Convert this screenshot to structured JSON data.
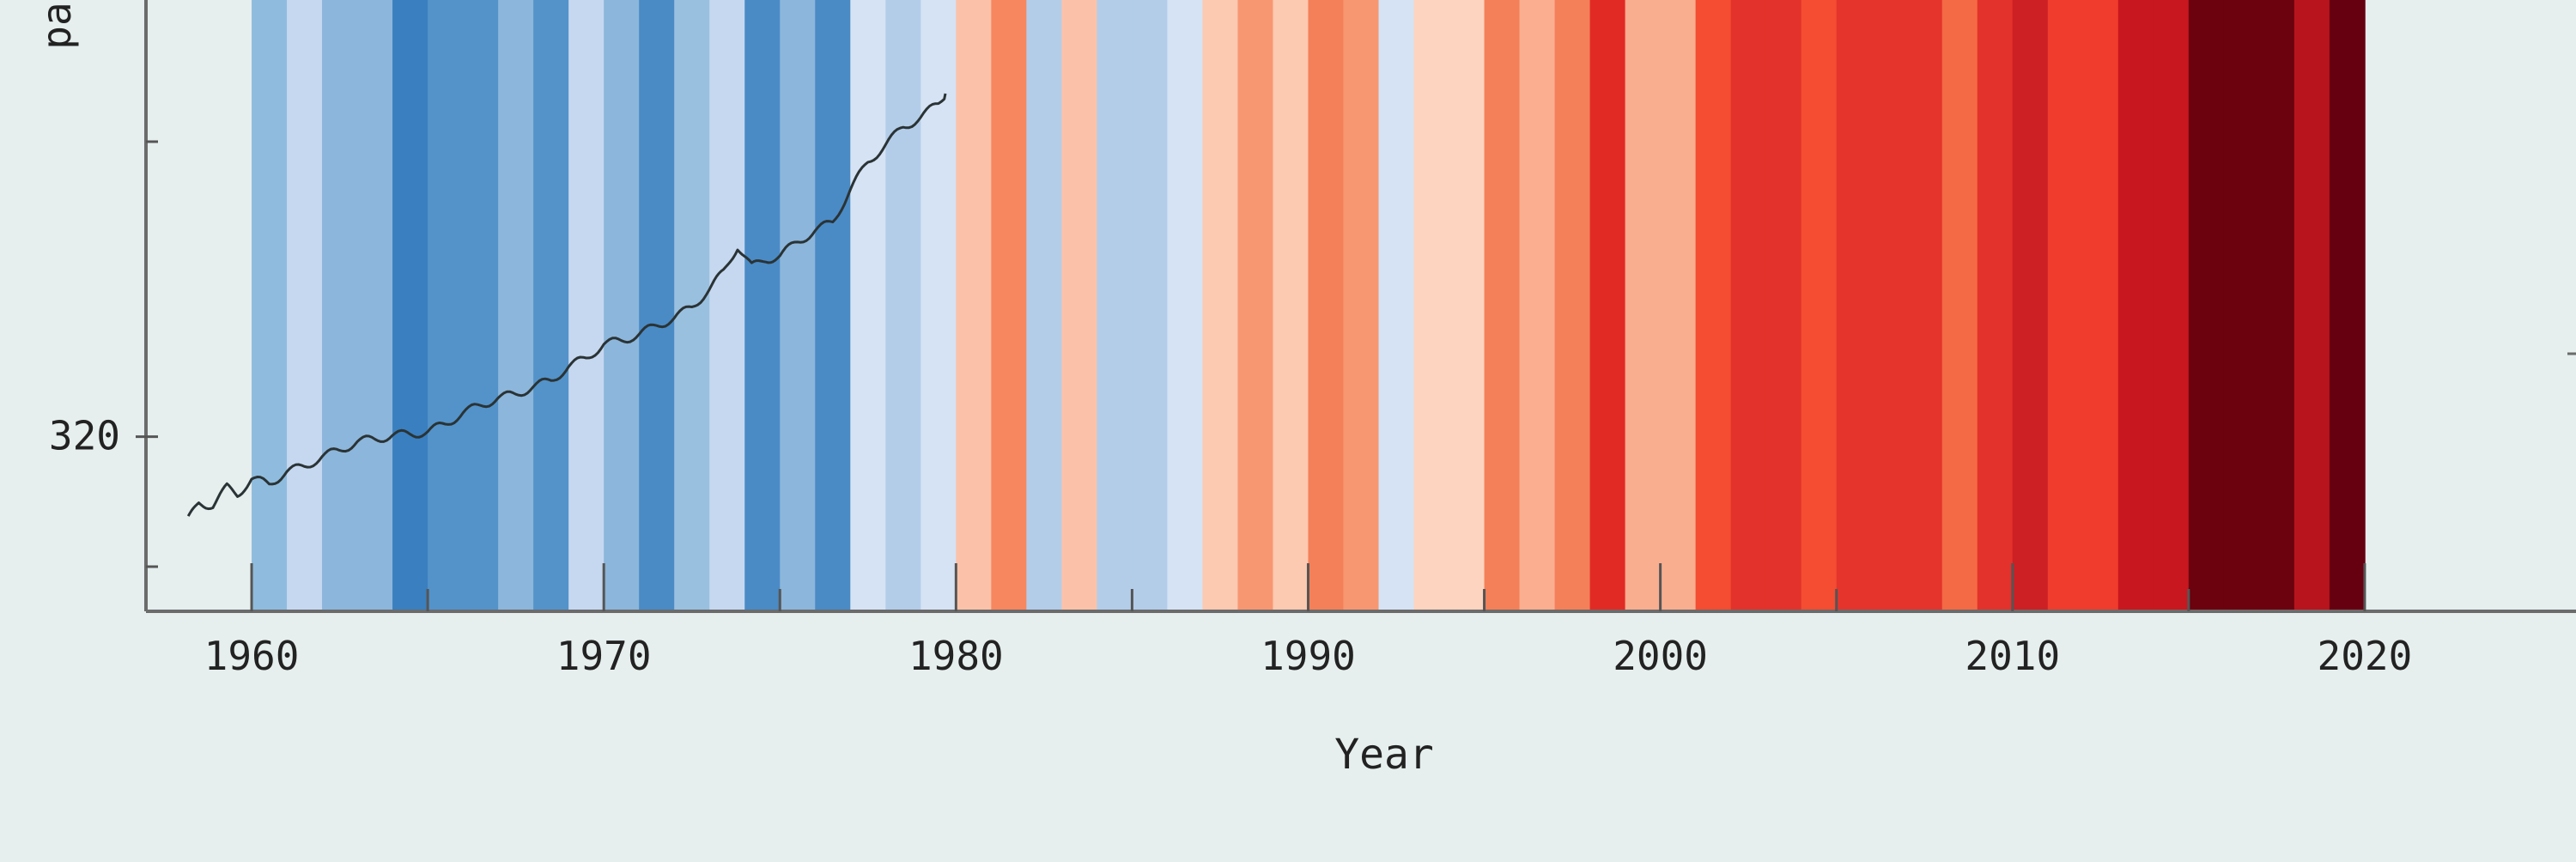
{
  "chart_data": {
    "type": "bar",
    "title": "",
    "xlabel": "Year",
    "ylabel_visible_fragment": "pa",
    "x_ticks": [
      1960,
      1970,
      1980,
      1990,
      2000,
      2010,
      2020
    ],
    "y_ticks": [
      320
    ],
    "xlim": [
      1957,
      2026
    ],
    "ylim": [
      306,
      355
    ],
    "grid": false,
    "legend": "none",
    "stripes": {
      "years": [
        1960,
        1961,
        1962,
        1963,
        1964,
        1965,
        1966,
        1967,
        1968,
        1969,
        1970,
        1971,
        1972,
        1973,
        1974,
        1975,
        1976,
        1977,
        1978,
        1979,
        1980,
        1981,
        1982,
        1983,
        1984,
        1985,
        1986,
        1987,
        1988,
        1989,
        1990,
        1991,
        1992,
        1993,
        1994,
        1995,
        1996,
        1997,
        1998,
        1999,
        2000,
        2001,
        2002,
        2003,
        2004,
        2005,
        2006,
        2007,
        2008,
        2009,
        2010,
        2011,
        2012,
        2013,
        2014,
        2015,
        2016,
        2017,
        2018,
        2019
      ],
      "colors": [
        "#8fbcde",
        "#c6d8f0",
        "#8cb6db",
        "#8cb6db",
        "#3a7fbf",
        "#5393ca",
        "#5393ca",
        "#8cb6db",
        "#5393ca",
        "#c6d8f0",
        "#8cb6db",
        "#4a8bc6",
        "#9ac0e0",
        "#c6d8f0",
        "#4a8bc6",
        "#8cb6db",
        "#4a8bc6",
        "#d5e3f4",
        "#b3cde9",
        "#d5e3f4",
        "#fcc2a9",
        "#f7875f",
        "#b3cde9",
        "#fcc2a9",
        "#b3cde9",
        "#b3cde9",
        "#d5e3f4",
        "#fcc9b1",
        "#f79772",
        "#fcc9b1",
        "#f4805a",
        "#f79772",
        "#d5e3f4",
        "#fdd4bf",
        "#fdd4bf",
        "#f4805a",
        "#fbae90",
        "#f4805a",
        "#e22a24",
        "#f9ae90",
        "#f9ae90",
        "#f44d32",
        "#e2322b",
        "#e2322b",
        "#f44d32",
        "#e5342c",
        "#e5342c",
        "#e5342c",
        "#f46a44",
        "#e2322b",
        "#cc2024",
        "#ef3c2c",
        "#ef3c2c",
        "#c8171e",
        "#c8171e",
        "#6b020e",
        "#6b020e",
        "#6b020e",
        "#b8141d",
        "#660010"
      ]
    },
    "series": [
      {
        "type": "line",
        "color": "#2a3335",
        "x": [
          1958.2,
          1958.5,
          1958.9,
          1959.3,
          1959.6,
          1960.0,
          1960.5,
          1961.0,
          1961.5,
          1962.0,
          1962.5,
          1963.0,
          1963.5,
          1964.0,
          1964.5,
          1965.0,
          1965.5,
          1966.0,
          1966.5,
          1967.0,
          1967.5,
          1968.0,
          1968.5,
          1969.0,
          1969.5,
          1970.0,
          1970.5,
          1971.0,
          1971.5,
          1972.0,
          1972.5,
          1973.0,
          1973.4,
          1973.8,
          1974.2,
          1974.6,
          1975.0,
          1975.5,
          1976.0,
          1976.5,
          1977.0,
          1977.5,
          1978.0,
          1978.5,
          1979.0,
          1979.5,
          1979.7
        ],
        "y": [
          313.3,
          314.7,
          314.5,
          315.9,
          315.4,
          316.6,
          316.2,
          317.2,
          317.6,
          318.4,
          318.9,
          319.6,
          319.8,
          320.1,
          320.2,
          320.4,
          321.0,
          321.9,
          322.5,
          323.1,
          323.4,
          324.0,
          324.5,
          325.6,
          326.3,
          327.4,
          327.7,
          328.2,
          328.9,
          329.5,
          330.4,
          331.8,
          333.2,
          335.3,
          333.6,
          334.2,
          334.5,
          335.6,
          336.5,
          337.2,
          339.8,
          342.0,
          343.4,
          344.8,
          345.6,
          346.7,
          347.5
        ]
      }
    ]
  }
}
